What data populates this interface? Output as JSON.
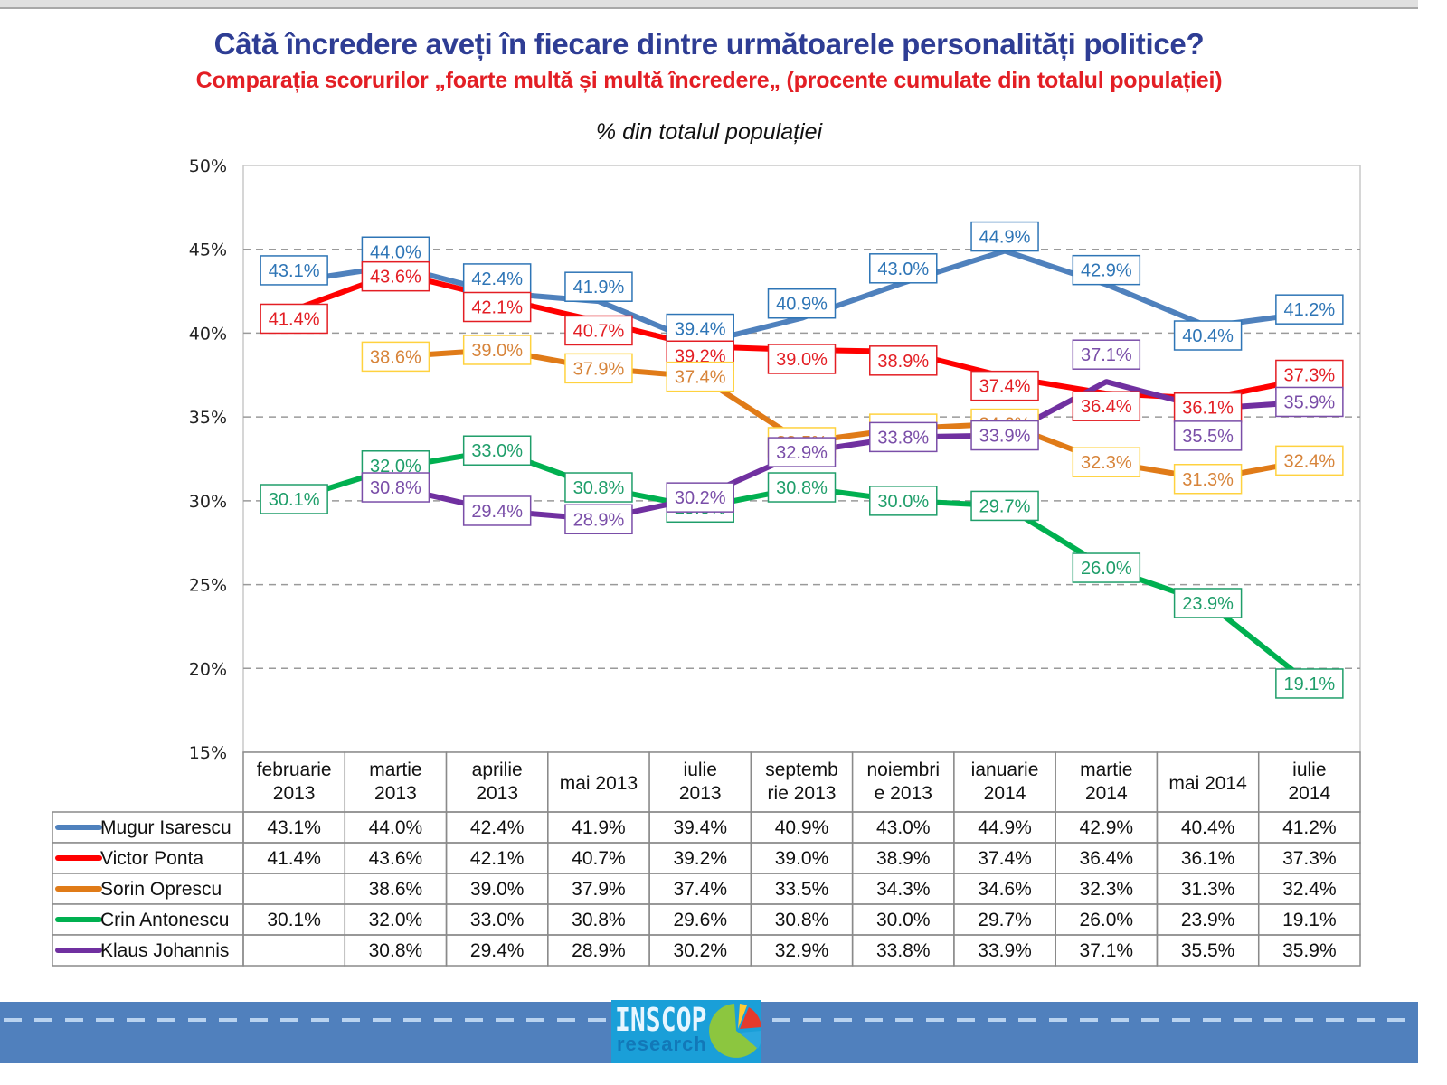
{
  "header": {
    "title": "Câtă încredere aveți în fiecare dintre următoarele personalități politice?",
    "subtitle": "Comparația scorurilor „foarte multă și multă încredere„ (procente cumulate din totalul populației)"
  },
  "chart_data": {
    "type": "line",
    "title": "Câtă încredere aveți în fiecare dintre următoarele personalități politice?",
    "subtitle": "Comparația scorurilor „foarte multă și multă încredere„ (procente cumulate din totalul populației)",
    "ylabel": "% din totalul populației",
    "xlabel": "",
    "ylim": [
      15,
      50
    ],
    "yticks": [
      50,
      45,
      40,
      35,
      30,
      25,
      20,
      15
    ],
    "ytick_labels": [
      "50%",
      "45%",
      "40%",
      "35%",
      "30%",
      "25%",
      "20%",
      "15%"
    ],
    "grid": "horizontal-dashed",
    "legend": "bottom-table",
    "categories": [
      [
        "februarie",
        "2013"
      ],
      [
        "martie",
        "2013"
      ],
      [
        "aprilie",
        "2013"
      ],
      [
        "mai 2013"
      ],
      [
        "iulie",
        "2013"
      ],
      [
        "septemb",
        "rie 2013"
      ],
      [
        "noiembri",
        "e 2013"
      ],
      [
        "ianuarie",
        "2014"
      ],
      [
        "martie",
        "2014"
      ],
      [
        "mai 2014"
      ],
      [
        "iulie",
        "2014"
      ]
    ],
    "series": [
      {
        "name": "Mugur Isarescu",
        "color": "#4f81bd",
        "label_color": "#2e75b6",
        "values": [
          43.1,
          44.0,
          42.4,
          41.9,
          39.4,
          40.9,
          43.0,
          44.9,
          42.9,
          40.4,
          41.2
        ]
      },
      {
        "name": "Victor Ponta",
        "color": "#ff0000",
        "label_color": "#e31e24",
        "values": [
          41.4,
          43.6,
          42.1,
          40.7,
          39.2,
          39.0,
          38.9,
          37.4,
          36.4,
          36.1,
          37.3
        ]
      },
      {
        "name": "Sorin Oprescu",
        "color": "#e07b18",
        "label_color": "#d7843a",
        "box_color": "#ffd23f",
        "values": [
          null,
          38.6,
          39.0,
          37.9,
          37.4,
          33.5,
          34.3,
          34.6,
          32.3,
          31.3,
          32.4
        ]
      },
      {
        "name": "Crin Antonescu",
        "color": "#00b050",
        "label_color": "#1f9e6a",
        "values": [
          30.1,
          32.0,
          33.0,
          30.8,
          29.6,
          30.8,
          30.0,
          29.7,
          26.0,
          23.9,
          19.1
        ]
      },
      {
        "name": "Klaus Johannis",
        "color": "#7030a0",
        "label_color": "#7a4ea8",
        "values": [
          null,
          30.8,
          29.4,
          28.9,
          30.2,
          32.9,
          33.8,
          33.9,
          37.1,
          35.5,
          35.9
        ]
      }
    ]
  },
  "footer": {
    "logo_text": "INSCOP",
    "logo_subtext": "research"
  }
}
